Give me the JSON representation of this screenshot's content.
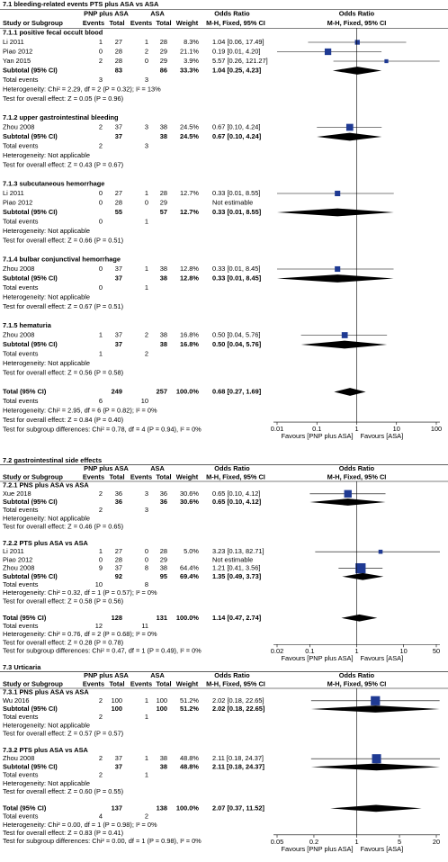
{
  "chart_data": [
    {
      "type": "forest",
      "log": true,
      "color": "#1f3a93",
      "title": "7.1 bleeding-related events PTS plus ASA vs ASA",
      "columns": {
        "group1": "PNP plus ASA",
        "group2": "ASA",
        "effect": "Odds Ratio",
        "plot": "Odds Ratio",
        "study": "Study or Subgroup",
        "events1": "Events",
        "total1": "Total",
        "events2": "Events",
        "total2": "Total",
        "weight": "Weight",
        "method": "M-H, Fixed, 95% CI",
        "plot_method": "M-H, Fixed, 95% CI"
      },
      "subgroups": [
        {
          "name": "7.1.1 positive fecal occult blood",
          "studies": [
            {
              "name": "Li 2011",
              "events1": 1,
              "total1": 27,
              "events2": 1,
              "total2": 28,
              "weight": 8.3,
              "weight_label": "8.3%",
              "or": 1.04,
              "lo": 0.06,
              "hi": 17.49,
              "label": "1.04 [0.06, 17.49]"
            },
            {
              "name": "Piao 2012",
              "events1": 0,
              "total1": 28,
              "events2": 2,
              "total2": 29,
              "weight": 21.1,
              "weight_label": "21.1%",
              "or": 0.19,
              "lo": 0.01,
              "hi": 4.2,
              "label": "0.19 [0.01, 4.20]"
            },
            {
              "name": "Yan 2015",
              "events1": 2,
              "total1": 28,
              "events2": 0,
              "total2": 29,
              "weight": 3.9,
              "weight_label": "3.9%",
              "or": 5.57,
              "lo": 0.26,
              "hi": 121.27,
              "label": "5.57 [0.26, 121.27]"
            }
          ],
          "subtotal": {
            "name": "Subtotal (95% CI)",
            "total1": 83,
            "total2": 86,
            "weight_label": "33.3%",
            "or": 1.04,
            "lo": 0.25,
            "hi": 4.23,
            "label": "1.04 [0.25, 4.23]"
          },
          "events": {
            "name": "Total events",
            "events1": 3,
            "events2": 3
          },
          "heterogeneity": "Heterogeneity: Chi² = 2.29, df = 2 (P = 0.32); I² = 13%",
          "overall": "Test for overall effect: Z = 0.05 (P = 0.96)"
        },
        {
          "name": "7.1.2 upper gastrointestinal bleeding",
          "studies": [
            {
              "name": "Zhou 2008",
              "events1": 2,
              "total1": 37,
              "events2": 3,
              "total2": 38,
              "weight": 24.5,
              "weight_label": "24.5%",
              "or": 0.67,
              "lo": 0.1,
              "hi": 4.24,
              "label": "0.67 [0.10, 4.24]"
            }
          ],
          "subtotal": {
            "name": "Subtotal (95% CI)",
            "total1": 37,
            "total2": 38,
            "weight_label": "24.5%",
            "or": 0.67,
            "lo": 0.1,
            "hi": 4.24,
            "label": "0.67 [0.10, 4.24]"
          },
          "events": {
            "name": "Total events",
            "events1": 2,
            "events2": 3
          },
          "heterogeneity": "Heterogeneity: Not applicable",
          "overall": "Test for overall effect: Z = 0.43 (P = 0.67)"
        },
        {
          "name": "7.1.3 subcutaneous hemorrhage",
          "studies": [
            {
              "name": "Li 2011",
              "events1": 0,
              "total1": 27,
              "events2": 1,
              "total2": 28,
              "weight": 12.7,
              "weight_label": "12.7%",
              "or": 0.33,
              "lo": 0.01,
              "hi": 8.55,
              "label": "0.33 [0.01, 8.55]"
            },
            {
              "name": "Piao 2012",
              "events1": 0,
              "total1": 28,
              "events2": 0,
              "total2": 29,
              "label": "Not estimable"
            }
          ],
          "subtotal": {
            "name": "Subtotal (95% CI)",
            "total1": 55,
            "total2": 57,
            "weight_label": "12.7%",
            "or": 0.33,
            "lo": 0.01,
            "hi": 8.55,
            "label": "0.33 [0.01, 8.55]"
          },
          "events": {
            "name": "Total events",
            "events1": 0,
            "events2": 1
          },
          "heterogeneity": "Heterogeneity: Not applicable",
          "overall": "Test for overall effect: Z = 0.66 (P = 0.51)"
        },
        {
          "name": "7.1.4 bulbar conjunctival hemorrhage",
          "studies": [
            {
              "name": "Zhou 2008",
              "events1": 0,
              "total1": 37,
              "events2": 1,
              "total2": 38,
              "weight": 12.8,
              "weight_label": "12.8%",
              "or": 0.33,
              "lo": 0.01,
              "hi": 8.45,
              "label": "0.33 [0.01, 8.45]"
            }
          ],
          "subtotal": {
            "name": "Subtotal (95% CI)",
            "total1": 37,
            "total2": 38,
            "weight_label": "12.8%",
            "or": 0.33,
            "lo": 0.01,
            "hi": 8.45,
            "label": "0.33 [0.01, 8.45]"
          },
          "events": {
            "name": "Total events",
            "events1": 0,
            "events2": 1
          },
          "heterogeneity": "Heterogeneity: Not applicable",
          "overall": "Test for overall effect: Z = 0.67 (P = 0.51)"
        },
        {
          "name": "7.1.5 hematuria",
          "studies": [
            {
              "name": "Zhou 2008",
              "events1": 1,
              "total1": 37,
              "events2": 2,
              "total2": 38,
              "weight": 16.8,
              "weight_label": "16.8%",
              "or": 0.5,
              "lo": 0.04,
              "hi": 5.76,
              "label": "0.50 [0.04, 5.76]"
            }
          ],
          "subtotal": {
            "name": "Subtotal (95% CI)",
            "total1": 37,
            "total2": 38,
            "weight_label": "16.8%",
            "or": 0.5,
            "lo": 0.04,
            "hi": 5.76,
            "label": "0.50 [0.04, 5.76]"
          },
          "events": {
            "name": "Total events",
            "events1": 1,
            "events2": 2
          },
          "heterogeneity": "Heterogeneity: Not applicable",
          "overall": "Test for overall effect: Z = 0.56 (P = 0.58)"
        }
      ],
      "total": {
        "name": "Total (95% CI)",
        "total1": 249,
        "total2": 257,
        "weight_label": "100.0%",
        "or": 0.68,
        "lo": 0.27,
        "hi": 1.69,
        "label": "0.68 [0.27, 1.69]"
      },
      "total_events": {
        "name": "Total events",
        "events1": 6,
        "events2": 10
      },
      "heterogeneity": "Heterogeneity: Chi² = 2.95, df = 6 (P = 0.82); I² = 0%",
      "overall": "Test for overall effect: Z = 0.84 (P = 0.40)",
      "subgroup_differences": "Test for subgroup differences: Chi² = 0.78, df = 4 (P = 0.94), I² = 0%",
      "xlim": [
        0.01,
        100
      ],
      "xticks": [
        0.01,
        0.1,
        1,
        10,
        100
      ],
      "favours_left": "Favours [PNP plus ASA]",
      "favours_right": "Favours [ASA]"
    },
    {
      "type": "forest",
      "log": true,
      "color": "#1f3a93",
      "title": "7.2 gastrointestinal side effects",
      "columns": {
        "group1": "PNP plus ASA",
        "group2": "ASA",
        "effect": "Odds Ratio",
        "plot": "Odds Ratio",
        "study": "Study or Subgroup",
        "events1": "Events",
        "total1": "Total",
        "events2": "Events",
        "total2": "Total",
        "weight": "Weight",
        "method": "M-H, Fixed, 95% CI",
        "plot_method": "M-H, Fixed, 95% CI"
      },
      "subgroups": [
        {
          "name": "7.2.1 PNS plus ASA vs ASA",
          "studies": [
            {
              "name": "Xue 2018",
              "events1": 2,
              "total1": 36,
              "events2": 3,
              "total2": 36,
              "weight": 30.6,
              "weight_label": "30.6%",
              "or": 0.65,
              "lo": 0.1,
              "hi": 4.12,
              "label": "0.65 [0.10, 4.12]"
            }
          ],
          "subtotal": {
            "name": "Subtotal (95% CI)",
            "total1": 36,
            "total2": 36,
            "weight_label": "30.6%",
            "or": 0.65,
            "lo": 0.1,
            "hi": 4.12,
            "label": "0.65 [0.10, 4.12]"
          },
          "events": {
            "name": "Total events",
            "events1": 2,
            "events2": 3
          },
          "heterogeneity": "Heterogeneity: Not applicable",
          "overall": "Test for overall effect: Z = 0.46 (P = 0.65)"
        },
        {
          "name": "7.2.2 PTS plus ASA vs ASA",
          "studies": [
            {
              "name": "Li 2011",
              "events1": 1,
              "total1": 27,
              "events2": 0,
              "total2": 28,
              "weight": 5.0,
              "weight_label": "5.0%",
              "or": 3.23,
              "lo": 0.13,
              "hi": 82.71,
              "label": "3.23 [0.13, 82.71]"
            },
            {
              "name": "Piao 2012",
              "events1": 0,
              "total1": 28,
              "events2": 0,
              "total2": 29,
              "label": "Not estimable"
            },
            {
              "name": "Zhou 2008",
              "events1": 9,
              "total1": 37,
              "events2": 8,
              "total2": 38,
              "weight": 64.4,
              "weight_label": "64.4%",
              "or": 1.21,
              "lo": 0.41,
              "hi": 3.56,
              "label": "1.21 [0.41, 3.56]"
            }
          ],
          "subtotal": {
            "name": "Subtotal (95% CI)",
            "total1": 92,
            "total2": 95,
            "weight_label": "69.4%",
            "or": 1.35,
            "lo": 0.49,
            "hi": 3.73,
            "label": "1.35 [0.49, 3.73]"
          },
          "events": {
            "name": "Total events",
            "events1": 10,
            "events2": 8
          },
          "heterogeneity": "Heterogeneity: Chi² = 0.32, df = 1 (P = 0.57); I² = 0%",
          "overall": "Test for overall effect: Z = 0.58 (P = 0.56)"
        }
      ],
      "total": {
        "name": "Total (95% CI)",
        "total1": 128,
        "total2": 131,
        "weight_label": "100.0%",
        "or": 1.14,
        "lo": 0.47,
        "hi": 2.74,
        "label": "1.14 [0.47, 2.74]"
      },
      "total_events": {
        "name": "Total events",
        "events1": 12,
        "events2": 11
      },
      "heterogeneity": "Heterogeneity: Chi² = 0.76, df = 2 (P = 0.68); I² = 0%",
      "overall": "Test for overall effect: Z = 0.28 (P = 0.78)",
      "subgroup_differences": "Test for subgroup differences: Chi² = 0.47, df = 1 (P = 0.49), I² = 0%",
      "xlim": [
        0.02,
        50
      ],
      "xticks": [
        0.02,
        0.1,
        1,
        10,
        50
      ],
      "favours_left": "Favours [PNP plus ASA]",
      "favours_right": "Favours [ASA]"
    },
    {
      "type": "forest",
      "log": true,
      "color": "#1f3a93",
      "title": "7.3 Urticaria",
      "columns": {
        "group1": "PNP plus ASA",
        "group2": "ASA",
        "effect": "Odds Ratio",
        "plot": "Odds Ratio",
        "study": "Study or Subgroup",
        "events1": "Events",
        "total1": "Total",
        "events2": "Events",
        "total2": "Total",
        "weight": "Weight",
        "method": "M-H, Fixed, 95% CI",
        "plot_method": "M-H, Fixed, 95% CI"
      },
      "subgroups": [
        {
          "name": "7.3.1 PNS plus ASA vs ASA",
          "studies": [
            {
              "name": "Wu 2016",
              "events1": 2,
              "total1": 100,
              "events2": 1,
              "total2": 100,
              "weight": 51.2,
              "weight_label": "51.2%",
              "or": 2.02,
              "lo": 0.18,
              "hi": 22.65,
              "label": "2.02 [0.18, 22.65]"
            }
          ],
          "subtotal": {
            "name": "Subtotal (95% CI)",
            "total1": 100,
            "total2": 100,
            "weight_label": "51.2%",
            "or": 2.02,
            "lo": 0.18,
            "hi": 22.65,
            "label": "2.02 [0.18, 22.65]"
          },
          "events": {
            "name": "Total events",
            "events1": 2,
            "events2": 1
          },
          "heterogeneity": "Heterogeneity: Not applicable",
          "overall": "Test for overall effect: Z = 0.57 (P = 0.57)"
        },
        {
          "name": "7.3.2 PTS plus ASA vs ASA",
          "studies": [
            {
              "name": "Zhou 2008",
              "events1": 2,
              "total1": 37,
              "events2": 1,
              "total2": 38,
              "weight": 48.8,
              "weight_label": "48.8%",
              "or": 2.11,
              "lo": 0.18,
              "hi": 24.37,
              "label": "2.11 [0.18, 24.37]"
            }
          ],
          "subtotal": {
            "name": "Subtotal (95% CI)",
            "total1": 37,
            "total2": 38,
            "weight_label": "48.8%",
            "or": 2.11,
            "lo": 0.18,
            "hi": 24.37,
            "label": "2.11 [0.18, 24.37]"
          },
          "events": {
            "name": "Total events",
            "events1": 2,
            "events2": 1
          },
          "heterogeneity": "Heterogeneity: Not applicable",
          "overall": "Test for overall effect: Z = 0.60 (P = 0.55)"
        }
      ],
      "total": {
        "name": "Total (95% CI)",
        "total1": 137,
        "total2": 138,
        "weight_label": "100.0%",
        "or": 2.07,
        "lo": 0.37,
        "hi": 11.52,
        "label": "2.07 [0.37, 11.52]"
      },
      "total_events": {
        "name": "Total events",
        "events1": 4,
        "events2": 2
      },
      "heterogeneity": "Heterogeneity: Chi² = 0.00, df = 1 (P = 0.98); I² = 0%",
      "overall": "Test for overall effect: Z = 0.83 (P = 0.41)",
      "subgroup_differences": "Test for subgroup differences: Chi² = 0.00, df = 1 (P = 0.98), I² = 0%",
      "xlim": [
        0.05,
        20
      ],
      "xticks": [
        0.05,
        0.2,
        1,
        5,
        20
      ],
      "favours_left": "Favours [PNP plus ASA]",
      "favours_right": "Favours [ASA]"
    }
  ]
}
